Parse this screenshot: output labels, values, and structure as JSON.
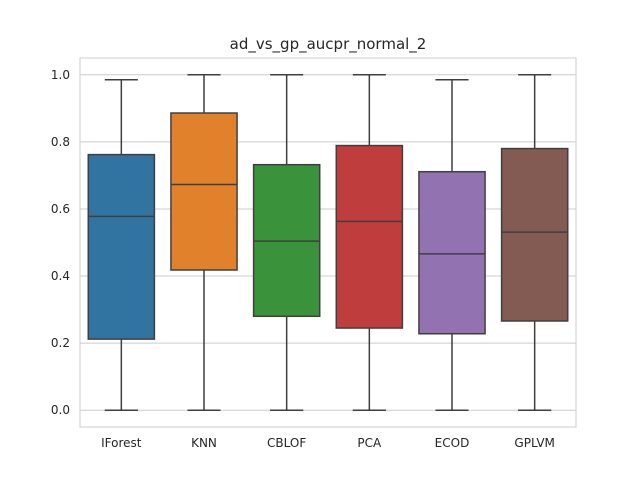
{
  "chart_data": {
    "type": "box",
    "title": "ad_vs_gp_aucpr_normal_2",
    "xlabel": "",
    "ylabel": "",
    "ylim": [
      -0.05,
      1.05
    ],
    "yticks": [
      "0.0",
      "0.2",
      "0.4",
      "0.6",
      "0.8",
      "1.0"
    ],
    "grid": "y",
    "categories": [
      "IForest",
      "KNN",
      "CBLOF",
      "PCA",
      "ECOD",
      "GPLVM"
    ],
    "series": [
      {
        "min": 0.0,
        "q1": 0.212,
        "median": 0.578,
        "q3": 0.762,
        "max": 0.985
      },
      {
        "min": 0.0,
        "q1": 0.418,
        "median": 0.673,
        "q3": 0.886,
        "max": 1.0
      },
      {
        "min": 0.0,
        "q1": 0.28,
        "median": 0.504,
        "q3": 0.732,
        "max": 1.0
      },
      {
        "min": 0.0,
        "q1": 0.245,
        "median": 0.563,
        "q3": 0.789,
        "max": 1.0
      },
      {
        "min": 0.0,
        "q1": 0.228,
        "median": 0.466,
        "q3": 0.711,
        "max": 0.985
      },
      {
        "min": 0.0,
        "q1": 0.266,
        "median": 0.531,
        "q3": 0.78,
        "max": 1.0
      }
    ],
    "colors": [
      "#3274a1",
      "#e1812c",
      "#3a923a",
      "#c03d3e",
      "#9372b2",
      "#845b53"
    ]
  }
}
